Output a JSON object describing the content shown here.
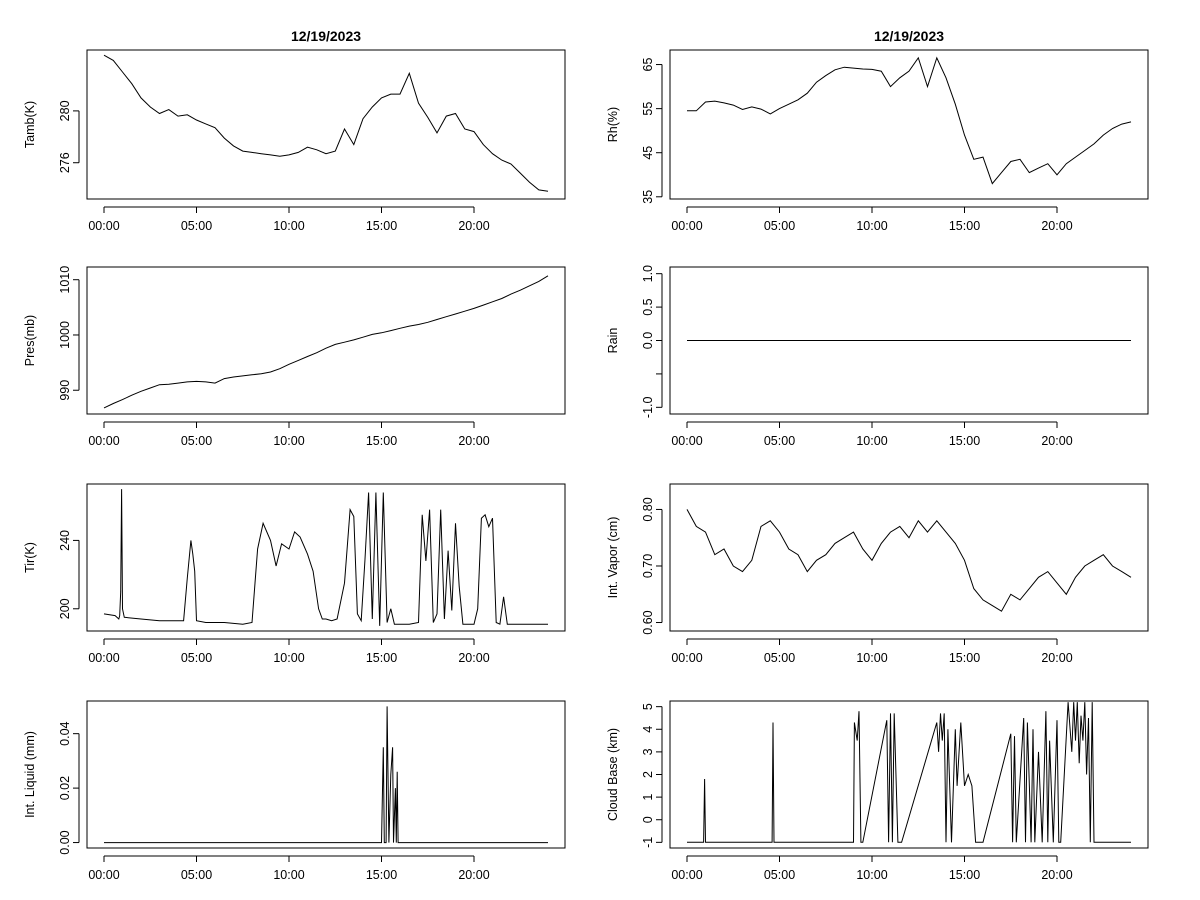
{
  "chart_data": [
    {
      "type": "line",
      "title": "12/19/2023",
      "ylabel": "Tamb(K)",
      "xlim": [
        0,
        24
      ],
      "ylim": [
        273.2,
        284.7
      ],
      "yticks": [
        276,
        280
      ],
      "xticks": [
        0,
        5,
        10,
        15,
        20
      ],
      "xtick_labels": [
        "00:00",
        "05:00",
        "10:00",
        "15:00",
        "20:00"
      ],
      "grid": false,
      "series": [
        {
          "x": [
            0,
            0.5,
            1,
            1.5,
            2,
            2.5,
            3,
            3.5,
            4,
            4.5,
            5,
            5.5,
            6,
            6.5,
            7,
            7.5,
            8,
            8.5,
            9,
            9.5,
            10,
            10.5,
            11,
            11.5,
            12,
            12.5,
            13,
            13.5,
            14,
            14.5,
            15,
            15.5,
            16,
            16.5,
            17,
            17.5,
            18,
            18.5,
            19,
            19.5,
            20,
            20.5,
            21,
            21.5,
            22,
            22.5,
            23,
            23.5,
            24
          ],
          "y": [
            284.3,
            283.9,
            283.0,
            282.1,
            281.0,
            280.3,
            279.8,
            280.1,
            279.6,
            279.7,
            279.3,
            279.0,
            278.7,
            277.9,
            277.3,
            276.9,
            276.8,
            276.7,
            276.6,
            276.5,
            276.6,
            276.8,
            277.2,
            277.0,
            276.7,
            276.9,
            278.6,
            277.4,
            279.4,
            280.3,
            281.0,
            281.3,
            281.3,
            282.9,
            280.6,
            279.5,
            278.3,
            279.6,
            279.8,
            278.6,
            278.4,
            277.4,
            276.7,
            276.2,
            275.9,
            275.2,
            274.5,
            273.9,
            273.8
          ]
        }
      ]
    },
    {
      "type": "line",
      "title": "12/19/2023",
      "ylabel": "Rh(%)",
      "xlim": [
        0,
        24
      ],
      "ylim": [
        34.5,
        68.3
      ],
      "yticks": [
        35,
        45,
        55,
        65
      ],
      "xticks": [
        0,
        5,
        10,
        15,
        20
      ],
      "xtick_labels": [
        "00:00",
        "05:00",
        "10:00",
        "15:00",
        "20:00"
      ],
      "grid": false,
      "series": [
        {
          "x": [
            0,
            0.5,
            1,
            1.5,
            2,
            2.5,
            3,
            3.5,
            4,
            4.5,
            5,
            5.5,
            6,
            6.5,
            7,
            7.5,
            8,
            8.5,
            9,
            9.5,
            10,
            10.5,
            11,
            11.5,
            12,
            12.5,
            13,
            13.5,
            14,
            14.5,
            15,
            15.5,
            16,
            16.5,
            17,
            17.5,
            18,
            18.5,
            19,
            19.5,
            20,
            20.5,
            21,
            21.5,
            22,
            22.5,
            23,
            23.5,
            24
          ],
          "y": [
            54.5,
            54.5,
            56.5,
            56.7,
            56.3,
            55.8,
            54.8,
            55.4,
            54.9,
            53.8,
            55.0,
            56.0,
            57.0,
            58.5,
            61.0,
            62.5,
            63.8,
            64.4,
            64.2,
            64.0,
            63.9,
            63.5,
            60.0,
            62.0,
            63.5,
            66.5,
            60.0,
            66.5,
            62.0,
            56.0,
            49.0,
            43.5,
            44.0,
            38.0,
            40.5,
            43.0,
            43.5,
            40.5,
            41.5,
            42.5,
            40.0,
            42.5,
            44.0,
            45.5,
            47.0,
            49.0,
            50.5,
            51.5,
            52.0
          ]
        }
      ]
    },
    {
      "type": "line",
      "title": "",
      "ylabel": "Pres(mb)",
      "xlim": [
        0,
        24
      ],
      "ylim": [
        985.7,
        1012.3
      ],
      "yticks": [
        990,
        1000,
        1010
      ],
      "xticks": [
        0,
        5,
        10,
        15,
        20
      ],
      "xtick_labels": [
        "00:00",
        "05:00",
        "10:00",
        "15:00",
        "20:00"
      ],
      "grid": false,
      "series": [
        {
          "x": [
            0,
            0.5,
            1,
            1.5,
            2,
            2.5,
            3,
            3.5,
            4,
            4.5,
            5,
            5.5,
            6,
            6.5,
            7,
            7.5,
            8,
            8.5,
            9,
            9.5,
            10,
            10.5,
            11,
            11.5,
            12,
            12.5,
            13,
            13.5,
            14,
            14.5,
            15,
            15.5,
            16,
            16.5,
            17,
            17.5,
            18,
            18.5,
            19,
            19.5,
            20,
            20.5,
            21,
            21.5,
            22,
            22.5,
            23,
            23.5,
            24
          ],
          "y": [
            986.8,
            987.6,
            988.3,
            989.1,
            989.8,
            990.4,
            991.0,
            991.1,
            991.3,
            991.5,
            991.6,
            991.5,
            991.3,
            992.1,
            992.4,
            992.6,
            992.8,
            993.0,
            993.3,
            993.9,
            994.7,
            995.4,
            996.1,
            996.8,
            997.6,
            998.3,
            998.7,
            999.1,
            999.6,
            1000.1,
            1000.4,
            1000.8,
            1001.2,
            1001.6,
            1001.9,
            1002.3,
            1002.8,
            1003.3,
            1003.8,
            1004.3,
            1004.8,
            1005.4,
            1006.0,
            1006.6,
            1007.4,
            1008.1,
            1008.9,
            1009.7,
            1010.7
          ]
        }
      ]
    },
    {
      "type": "line",
      "title": "",
      "ylabel": "Rain",
      "xlim": [
        0,
        24
      ],
      "ylim": [
        -1.1,
        1.1
      ],
      "yticks": [
        -1.0,
        -0.5,
        0.0,
        0.5,
        1.0
      ],
      "ytick_labels": [
        "-1.0",
        "",
        "0.0",
        "0.5",
        "1.0"
      ],
      "xticks": [
        0,
        5,
        10,
        15,
        20
      ],
      "xtick_labels": [
        "00:00",
        "05:00",
        "10:00",
        "15:00",
        "20:00"
      ],
      "grid": false,
      "series": [
        {
          "x": [
            0,
            24
          ],
          "y": [
            0,
            0
          ]
        }
      ]
    },
    {
      "type": "line",
      "title": "",
      "ylabel": "Tir(K)",
      "xlim": [
        0,
        24
      ],
      "ylim": [
        187,
        273
      ],
      "yticks": [
        200,
        240
      ],
      "xticks": [
        0,
        5,
        10,
        15,
        20
      ],
      "xtick_labels": [
        "00:00",
        "05:00",
        "10:00",
        "15:00",
        "20:00"
      ],
      "grid": false,
      "series": [
        {
          "x": [
            0,
            0.6,
            0.8,
            0.85,
            0.9,
            0.95,
            1.0,
            1.1,
            2.0,
            3.0,
            4.0,
            4.3,
            4.5,
            4.7,
            4.8,
            4.9,
            5.0,
            5.5,
            6.5,
            7.5,
            8.0,
            8.3,
            8.6,
            9.0,
            9.3,
            9.6,
            10.0,
            10.3,
            10.6,
            11.0,
            11.3,
            11.6,
            11.8,
            12.0,
            12.3,
            12.6,
            13.0,
            13.3,
            13.5,
            13.7,
            13.9,
            14.1,
            14.3,
            14.5,
            14.7,
            14.9,
            15.1,
            15.3,
            15.5,
            15.7,
            15.9,
            16.1,
            16.5,
            17.0,
            17.2,
            17.4,
            17.6,
            17.8,
            18.0,
            18.2,
            18.4,
            18.6,
            18.8,
            19.0,
            19.2,
            19.4,
            19.6,
            19.8,
            20.0,
            20.2,
            20.4,
            20.6,
            20.8,
            21.0,
            21.2,
            21.4,
            21.6,
            21.8,
            22.0,
            22.2,
            22.4,
            22.6,
            23.0,
            23.5,
            24.0
          ],
          "y": [
            197,
            196,
            194,
            196,
            210,
            270,
            200,
            195,
            194,
            193,
            193,
            193,
            218,
            240,
            232,
            222,
            193,
            192,
            192,
            191,
            192,
            235,
            250,
            240,
            225,
            238,
            235,
            245,
            242,
            232,
            222,
            200,
            194,
            194,
            193,
            194,
            215,
            258,
            254,
            197,
            193,
            228,
            268,
            194,
            268,
            190,
            268,
            192,
            200,
            191,
            191,
            191,
            191,
            192,
            255,
            228,
            258,
            192,
            197,
            258,
            194,
            234,
            199,
            250,
            213,
            191,
            191,
            191,
            191,
            200,
            253,
            255,
            248,
            253,
            192,
            191,
            207,
            191,
            191,
            191,
            191,
            191,
            191,
            191,
            191
          ]
        }
      ]
    },
    {
      "type": "line",
      "title": "",
      "ylabel": "Int. Vapor (cm)",
      "xlim": [
        0,
        24
      ],
      "ylim": [
        0.585,
        0.845
      ],
      "yticks": [
        0.6,
        0.7,
        0.8
      ],
      "ytick_labels": [
        "0.60",
        "0.70",
        "0.80"
      ],
      "xticks": [
        0,
        5,
        10,
        15,
        20
      ],
      "xtick_labels": [
        "00:00",
        "05:00",
        "10:00",
        "15:00",
        "20:00"
      ],
      "grid": false,
      "series": [
        {
          "x": [
            0,
            0.5,
            1,
            1.5,
            2,
            2.5,
            3,
            3.5,
            4,
            4.5,
            5,
            5.5,
            6,
            6.5,
            7,
            7.5,
            8,
            8.5,
            9,
            9.5,
            10,
            10.5,
            11,
            11.5,
            12,
            12.5,
            13,
            13.5,
            14,
            14.5,
            15,
            15.5,
            16,
            16.5,
            17,
            17.5,
            18,
            18.5,
            19,
            19.5,
            20,
            20.5,
            21,
            21.5,
            22,
            22.5,
            23,
            23.5,
            24
          ],
          "y": [
            0.8,
            0.77,
            0.76,
            0.72,
            0.73,
            0.7,
            0.69,
            0.71,
            0.77,
            0.78,
            0.76,
            0.73,
            0.72,
            0.69,
            0.71,
            0.72,
            0.74,
            0.75,
            0.76,
            0.73,
            0.71,
            0.74,
            0.76,
            0.77,
            0.75,
            0.78,
            0.76,
            0.78,
            0.76,
            0.74,
            0.71,
            0.66,
            0.64,
            0.63,
            0.62,
            0.65,
            0.64,
            0.66,
            0.68,
            0.69,
            0.67,
            0.65,
            0.68,
            0.7,
            0.71,
            0.72,
            0.7,
            0.69,
            0.68
          ]
        }
      ]
    },
    {
      "type": "line",
      "title": "",
      "ylabel": "Int. Liquid (mm)",
      "xlim": [
        0,
        24
      ],
      "ylim": [
        -0.002,
        0.052
      ],
      "yticks": [
        0.0,
        0.02,
        0.04
      ],
      "ytick_labels": [
        "0.00",
        "0.02",
        "0.04"
      ],
      "xticks": [
        0,
        5,
        10,
        15,
        20
      ],
      "xtick_labels": [
        "00:00",
        "05:00",
        "10:00",
        "15:00",
        "20:00"
      ],
      "grid": false,
      "series": [
        {
          "x": [
            0,
            15.0,
            15.1,
            15.15,
            15.25,
            15.3,
            15.4,
            15.5,
            15.6,
            15.65,
            15.75,
            15.8,
            15.85,
            15.9,
            16.0,
            24
          ],
          "y": [
            0,
            0,
            0.035,
            0,
            0,
            0.05,
            0,
            0.025,
            0.035,
            0,
            0.02,
            0,
            0.026,
            0,
            0,
            0
          ]
        }
      ]
    },
    {
      "type": "line",
      "title": "",
      "ylabel": "Cloud Base (km)",
      "xlim": [
        0,
        24
      ],
      "ylim": [
        -1.25,
        5.25
      ],
      "yticks": [
        -1,
        0,
        1,
        2,
        3,
        4,
        5
      ],
      "xticks": [
        0,
        5,
        10,
        15,
        20
      ],
      "xtick_labels": [
        "00:00",
        "05:00",
        "10:00",
        "15:00",
        "20:00"
      ],
      "grid": false,
      "series": [
        {
          "x": [
            0,
            0.9,
            0.95,
            1.0,
            4.6,
            4.65,
            4.7,
            9.0,
            9.05,
            9.2,
            9.3,
            9.4,
            9.5,
            10.8,
            10.9,
            11.0,
            11.1,
            11.2,
            11.4,
            11.5,
            11.6,
            13.5,
            13.6,
            13.7,
            13.8,
            13.9,
            14.0,
            14.1,
            14.3,
            14.5,
            14.6,
            14.8,
            15.0,
            15.2,
            15.4,
            15.6,
            15.8,
            16.0,
            17.5,
            17.6,
            17.7,
            17.8,
            18.2,
            18.3,
            18.4,
            18.6,
            18.7,
            18.8,
            19.0,
            19.2,
            19.4,
            19.5,
            19.6,
            19.8,
            20.0,
            20.1,
            20.2,
            20.6,
            20.8,
            20.9,
            21.0,
            21.1,
            21.2,
            21.3,
            21.4,
            21.5,
            21.6,
            21.7,
            21.8,
            21.9,
            22.0,
            24
          ],
          "y": [
            -1,
            -1,
            1.8,
            -1,
            -1,
            4.3,
            -1,
            -1,
            4.3,
            3.5,
            4.8,
            -1,
            -1,
            4.4,
            -1,
            4.7,
            -1,
            4.7,
            -1,
            -1,
            -1,
            4.3,
            3.0,
            4.7,
            3.5,
            4.7,
            -1,
            4.0,
            -1,
            4.0,
            1.5,
            4.3,
            1.5,
            2.0,
            1.5,
            -1,
            -1,
            -1,
            3.8,
            -1,
            3.7,
            -1,
            4.5,
            -1,
            4.3,
            -1,
            4.0,
            -1,
            3.0,
            -1,
            4.8,
            -1,
            3.5,
            -1,
            4.4,
            -1,
            -1,
            5.2,
            3.0,
            5.2,
            3.5,
            5.2,
            2.5,
            4.6,
            3.5,
            5.2,
            2.0,
            4.5,
            -1,
            5.2,
            -1,
            -1
          ]
        }
      ]
    }
  ]
}
